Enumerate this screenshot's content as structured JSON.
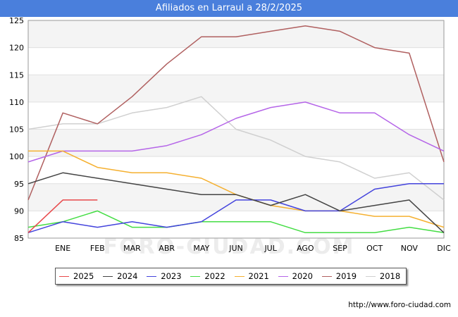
{
  "title": "Afiliados en Larraul a 28/2/2025",
  "source": "http://www.foro-ciudad.com",
  "watermark": "FORO-CIUDAD.COM",
  "chart_data": {
    "type": "line",
    "categories": [
      "",
      "ENE",
      "FEB",
      "MAR",
      "ABR",
      "MAY",
      "JUN",
      "JUL",
      "AGO",
      "SEP",
      "OCT",
      "NOV",
      "DIC"
    ],
    "ylim": [
      85,
      125
    ],
    "yticks": [
      85,
      90,
      95,
      100,
      105,
      110,
      115,
      120,
      125
    ],
    "grid": true,
    "legend_position": "bottom",
    "series": [
      {
        "name": "2025",
        "color": "#e8484a",
        "values": [
          86,
          92,
          92,
          null,
          null,
          null,
          null,
          null,
          null,
          null,
          null,
          null,
          null
        ]
      },
      {
        "name": "2024",
        "color": "#444444",
        "values": [
          95,
          97,
          96,
          95,
          94,
          93,
          93,
          91,
          93,
          90,
          91,
          92,
          86
        ]
      },
      {
        "name": "2023",
        "color": "#4444dd",
        "values": [
          86,
          88,
          87,
          88,
          87,
          88,
          92,
          92,
          90,
          90,
          94,
          95,
          95
        ]
      },
      {
        "name": "2022",
        "color": "#44dd44",
        "values": [
          87,
          88,
          90,
          87,
          87,
          88,
          88,
          88,
          86,
          86,
          86,
          87,
          86
        ]
      },
      {
        "name": "2021",
        "color": "#f5b030",
        "values": [
          101,
          101,
          98,
          97,
          97,
          96,
          93,
          91,
          90,
          90,
          89,
          89,
          87
        ]
      },
      {
        "name": "2020",
        "color": "#b565e8",
        "values": [
          99,
          101,
          101,
          101,
          102,
          104,
          107,
          109,
          110,
          108,
          108,
          104,
          101
        ]
      },
      {
        "name": "2019",
        "color": "#b06060",
        "values": [
          92,
          108,
          106,
          111,
          117,
          122,
          122,
          123,
          124,
          123,
          120,
          119,
          99
        ]
      },
      {
        "name": "2018",
        "color": "#d0d0d0",
        "values": [
          105,
          106,
          106,
          108,
          109,
          111,
          105,
          103,
          100,
          99,
          96,
          97,
          92
        ]
      }
    ]
  }
}
